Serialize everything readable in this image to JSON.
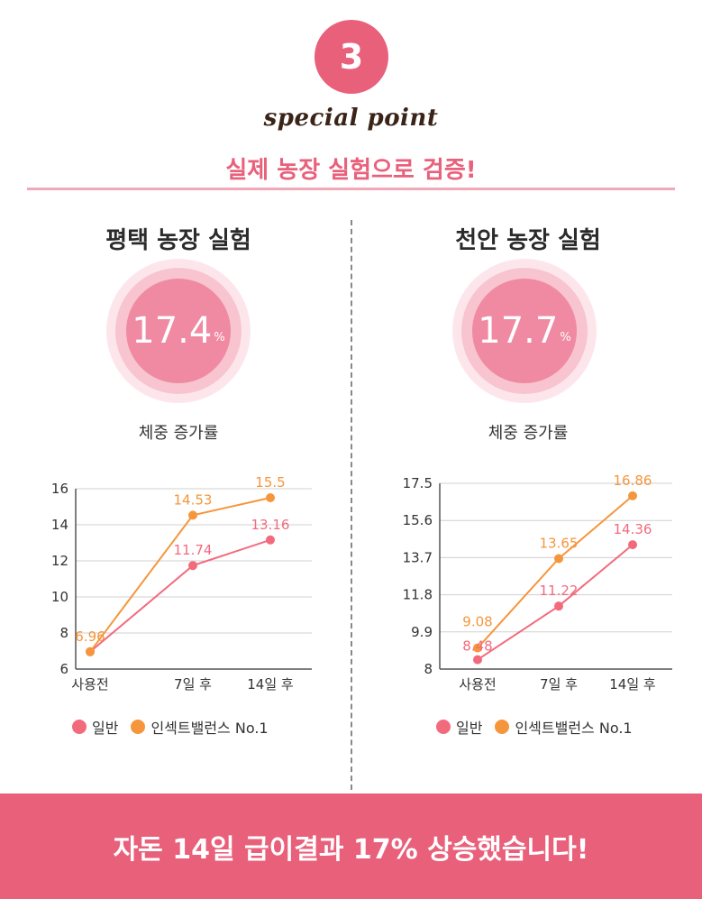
{
  "header": {
    "badge_number": "3",
    "special_point": "special point",
    "headline": "실제 농장 실험으로 검증!"
  },
  "farms": [
    {
      "title": "평택 농장 실험",
      "percent_value": "17.4",
      "percent_unit": "%",
      "metric_label": "체중 증가률"
    },
    {
      "title": "천안 농장 실험",
      "percent_value": "17.7",
      "percent_unit": "%",
      "metric_label": "체중 증가률"
    }
  ],
  "chart_data": [
    {
      "type": "line",
      "categories": [
        "사용전",
        "7일 후",
        "14일 후"
      ],
      "ylim": [
        6,
        16
      ],
      "yticks": [
        "6",
        "8",
        "10",
        "12",
        "14",
        "16"
      ],
      "grid": true,
      "legend_position": "bottom",
      "series": [
        {
          "name": "일반",
          "color": "#f26b7d",
          "values": [
            6.96,
            11.74,
            13.16
          ],
          "labels": [
            "",
            "11.74",
            "13.16"
          ]
        },
        {
          "name": "인섹트밸런스 No.1",
          "color": "#f5963c",
          "values": [
            6.96,
            14.53,
            15.5
          ],
          "labels": [
            "6.96",
            "14.53",
            "15.5"
          ]
        }
      ]
    },
    {
      "type": "line",
      "categories": [
        "사용전",
        "7일 후",
        "14일 후"
      ],
      "ylim": [
        8,
        17.5
      ],
      "yticks": [
        "8",
        "9.9",
        "11.8",
        "13.7",
        "15.6",
        "17.5"
      ],
      "grid": true,
      "legend_position": "bottom",
      "series": [
        {
          "name": "일반",
          "color": "#f26b7d",
          "values": [
            8.48,
            11.22,
            14.36
          ],
          "labels": [
            "8.48",
            "11.22",
            "14.36"
          ]
        },
        {
          "name": "인섹트밸런스 No.1",
          "color": "#f5963c",
          "values": [
            9.08,
            13.65,
            16.86
          ],
          "labels": [
            "9.08",
            "13.65",
            "16.86"
          ]
        }
      ]
    }
  ],
  "footer": {
    "text": "자돈 14일 급이결과 17% 상승했습니다!"
  }
}
